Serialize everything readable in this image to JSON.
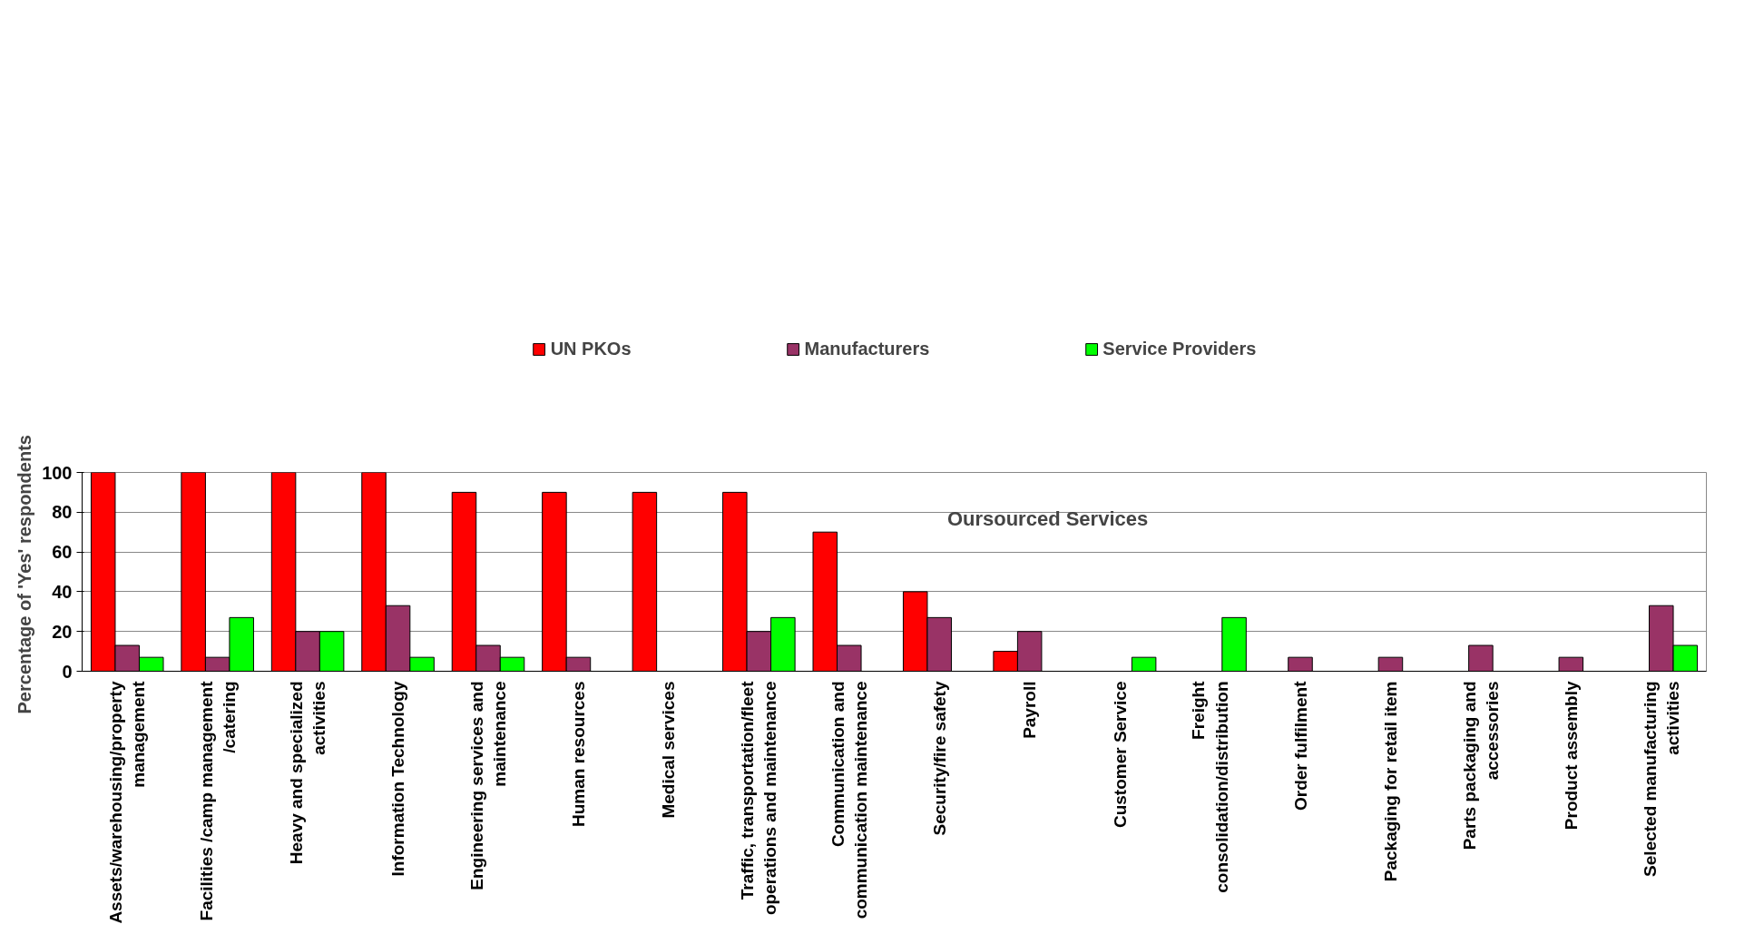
{
  "chart_data": {
    "type": "bar",
    "ylabel": "Percentage of  'Yes' respondents",
    "categories": [
      "Assets/warehousing/property management",
      "Facilities /camp management /catering",
      "Heavy and specialized activities",
      "Information Technology",
      "Engineering services and maintenance",
      "Human resources",
      "Medical services",
      "Traffic, transportation/fleet operations and maintenance",
      "Communication and communication maintenance",
      "Security/fire safety",
      "Payroll",
      "Customer Service",
      "Freight consolidation/distribution",
      "Order fulfilment",
      "Packaging for retail item",
      "Parts packaging and accessories",
      "Product assembly",
      "Selected manufacturing activities"
    ],
    "series": [
      {
        "name": "UN PKOs",
        "color": "#ff0000",
        "values": [
          100,
          100,
          100,
          100,
          90,
          90,
          90,
          90,
          70,
          40,
          10,
          null,
          null,
          null,
          null,
          null,
          null,
          null
        ]
      },
      {
        "name": "Manufacturers",
        "color": "#993366",
        "values": [
          13,
          7,
          20,
          33,
          13,
          7,
          null,
          20,
          13,
          27,
          20,
          null,
          null,
          7,
          7,
          13,
          7,
          33
        ]
      },
      {
        "name": "Service Providers",
        "color": "#00ff00",
        "values": [
          7,
          27,
          20,
          7,
          7,
          null,
          null,
          27,
          null,
          null,
          null,
          7,
          27,
          null,
          null,
          null,
          null,
          13
        ]
      }
    ],
    "ylim": [
      0,
      100
    ],
    "yticks": [
      0,
      20,
      40,
      60,
      80,
      100
    ],
    "grid": "y",
    "legend": "top",
    "annotations": [
      "Oursourced Services"
    ]
  }
}
